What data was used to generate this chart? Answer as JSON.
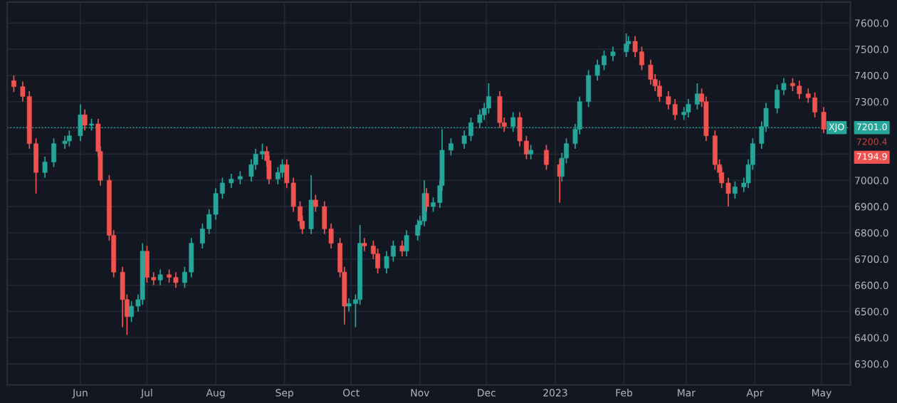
{
  "chart_data": {
    "type": "candlestick",
    "x": [
      "2022-05-02",
      "2022-05-06",
      "2022-05-09",
      "2022-05-12",
      "2022-05-16",
      "2022-05-20",
      "2022-05-25",
      "2022-05-27",
      "2022-06-01",
      "2022-06-03",
      "2022-06-06",
      "2022-06-09",
      "2022-06-10",
      "2022-06-14",
      "2022-06-16",
      "2022-06-20",
      "2022-06-22",
      "2022-06-24",
      "2022-06-27",
      "2022-06-29",
      "2022-07-01",
      "2022-07-04",
      "2022-07-07",
      "2022-07-11",
      "2022-07-14",
      "2022-07-18",
      "2022-07-21",
      "2022-07-26",
      "2022-07-29",
      "2022-08-01",
      "2022-08-04",
      "2022-08-08",
      "2022-08-12",
      "2022-08-17",
      "2022-08-19",
      "2022-08-22",
      "2022-08-24",
      "2022-08-25",
      "2022-08-29",
      "2022-08-31",
      "2022-09-02",
      "2022-09-05",
      "2022-09-08",
      "2022-09-09",
      "2022-09-13",
      "2022-09-15",
      "2022-09-19",
      "2022-09-22",
      "2022-09-26",
      "2022-09-28",
      "2022-09-30",
      "2022-10-03",
      "2022-10-05",
      "2022-10-07",
      "2022-10-11",
      "2022-10-13",
      "2022-10-17",
      "2022-10-20",
      "2022-10-24",
      "2022-10-26",
      "2022-10-31",
      "2022-11-01",
      "2022-11-03",
      "2022-11-04",
      "2022-11-07",
      "2022-11-10",
      "2022-11-11",
      "2022-11-15",
      "2022-11-21",
      "2022-11-24",
      "2022-11-28",
      "2022-11-30",
      "2022-12-02",
      "2022-12-07",
      "2022-12-09",
      "2022-12-13",
      "2022-12-16",
      "2022-12-19",
      "2022-12-21",
      "2022-12-28",
      "2023-01-03",
      "2023-01-04",
      "2023-01-06",
      "2023-01-10",
      "2023-01-12",
      "2023-01-16",
      "2023-01-20",
      "2023-01-23",
      "2023-01-27",
      "2023-02-02",
      "2023-02-03",
      "2023-02-06",
      "2023-02-09",
      "2023-02-13",
      "2023-02-15",
      "2023-02-17",
      "2023-02-21",
      "2023-02-24",
      "2023-02-28",
      "2023-03-02",
      "2023-03-06",
      "2023-03-08",
      "2023-03-10",
      "2023-03-14",
      "2023-03-16",
      "2023-03-17",
      "2023-03-20",
      "2023-03-23",
      "2023-03-27",
      "2023-03-29",
      "2023-03-31",
      "2023-04-04",
      "2023-04-06",
      "2023-04-11",
      "2023-04-14",
      "2023-04-18",
      "2023-04-21",
      "2023-04-25",
      "2023-04-28",
      "2023-05-02"
    ],
    "ohlc": [
      [
        7380,
        7400,
        7337,
        7357
      ],
      [
        7357,
        7377,
        7300,
        7320
      ],
      [
        7320,
        7340,
        7120,
        7140
      ],
      [
        7140,
        7160,
        6950,
        7030
      ],
      [
        7030,
        7090,
        7010,
        7070
      ],
      [
        7070,
        7160,
        7050,
        7140
      ],
      [
        7140,
        7170,
        7120,
        7150
      ],
      [
        7150,
        7190,
        7130,
        7170
      ],
      [
        7170,
        7290,
        7150,
        7250
      ],
      [
        7250,
        7270,
        7190,
        7210
      ],
      [
        7210,
        7235,
        7190,
        7215
      ],
      [
        7215,
        7235,
        7090,
        7110
      ],
      [
        7110,
        7130,
        6980,
        7000
      ],
      [
        7000,
        7020,
        6770,
        6790
      ],
      [
        6790,
        6810,
        6630,
        6650
      ],
      [
        6650,
        6670,
        6440,
        6545
      ],
      [
        6545,
        6565,
        6410,
        6480
      ],
      [
        6480,
        6540,
        6460,
        6520
      ],
      [
        6520,
        6565,
        6500,
        6545
      ],
      [
        6545,
        6760,
        6525,
        6730
      ],
      [
        6730,
        6750,
        6610,
        6630
      ],
      [
        6630,
        6650,
        6600,
        6620
      ],
      [
        6620,
        6660,
        6600,
        6640
      ],
      [
        6640,
        6660,
        6610,
        6630
      ],
      [
        6630,
        6650,
        6590,
        6610
      ],
      [
        6610,
        6670,
        6590,
        6650
      ],
      [
        6650,
        6780,
        6630,
        6760
      ],
      [
        6760,
        6835,
        6740,
        6815
      ],
      [
        6815,
        6890,
        6795,
        6870
      ],
      [
        6870,
        6970,
        6850,
        6950
      ],
      [
        6950,
        7010,
        6930,
        6990
      ],
      [
        6990,
        7025,
        6970,
        7005
      ],
      [
        7005,
        7035,
        6985,
        7015
      ],
      [
        7015,
        7080,
        6995,
        7060
      ],
      [
        7060,
        7120,
        7040,
        7100
      ],
      [
        7100,
        7140,
        7080,
        7110
      ],
      [
        7110,
        7130,
        7055,
        7075
      ],
      [
        7075,
        7095,
        6985,
        7005
      ],
      [
        7005,
        7050,
        6985,
        7030
      ],
      [
        7030,
        7080,
        7010,
        7060
      ],
      [
        7060,
        7080,
        6970,
        6990
      ],
      [
        6990,
        7010,
        6880,
        6900
      ],
      [
        6900,
        6920,
        6825,
        6845
      ],
      [
        6845,
        6865,
        6795,
        6815
      ],
      [
        6815,
        7020,
        6795,
        6925
      ],
      [
        6925,
        6945,
        6880,
        6900
      ],
      [
        6900,
        6920,
        6795,
        6815
      ],
      [
        6815,
        6835,
        6740,
        6760
      ],
      [
        6760,
        6780,
        6630,
        6650
      ],
      [
        6650,
        6670,
        6450,
        6520
      ],
      [
        6520,
        6550,
        6500,
        6530
      ],
      [
        6530,
        6565,
        6440,
        6545
      ],
      [
        6545,
        6830,
        6525,
        6760
      ],
      [
        6760,
        6780,
        6730,
        6750
      ],
      [
        6750,
        6770,
        6700,
        6720
      ],
      [
        6720,
        6740,
        6645,
        6665
      ],
      [
        6665,
        6730,
        6645,
        6710
      ],
      [
        6710,
        6770,
        6690,
        6750
      ],
      [
        6750,
        6770,
        6710,
        6730
      ],
      [
        6730,
        6810,
        6710,
        6790
      ],
      [
        6790,
        6850,
        6770,
        6830
      ],
      [
        6830,
        6865,
        6810,
        6845
      ],
      [
        6845,
        7000,
        6825,
        6950
      ],
      [
        6950,
        6970,
        6880,
        6900
      ],
      [
        6900,
        6935,
        6880,
        6915
      ],
      [
        6915,
        7000,
        6895,
        6980
      ],
      [
        6980,
        7195,
        6960,
        7115
      ],
      [
        7115,
        7160,
        7095,
        7140
      ],
      [
        7140,
        7190,
        7120,
        7170
      ],
      [
        7170,
        7240,
        7150,
        7220
      ],
      [
        7220,
        7270,
        7200,
        7250
      ],
      [
        7250,
        7295,
        7230,
        7275
      ],
      [
        7275,
        7370,
        7255,
        7320
      ],
      [
        7320,
        7340,
        7200,
        7220
      ],
      [
        7220,
        7240,
        7185,
        7205
      ],
      [
        7205,
        7260,
        7185,
        7240
      ],
      [
        7240,
        7260,
        7130,
        7150
      ],
      [
        7150,
        7170,
        7080,
        7100
      ],
      [
        7100,
        7135,
        7080,
        7115
      ],
      [
        7115,
        7135,
        7040,
        7060
      ],
      [
        7060,
        7080,
        6915,
        7015
      ],
      [
        7015,
        7105,
        6995,
        7085
      ],
      [
        7085,
        7160,
        7065,
        7140
      ],
      [
        7140,
        7215,
        7120,
        7195
      ],
      [
        7195,
        7320,
        7175,
        7300
      ],
      [
        7300,
        7420,
        7280,
        7400
      ],
      [
        7400,
        7460,
        7380,
        7440
      ],
      [
        7440,
        7495,
        7420,
        7475
      ],
      [
        7475,
        7510,
        7455,
        7490
      ],
      [
        7490,
        7560,
        7470,
        7520
      ],
      [
        7520,
        7550,
        7500,
        7530
      ],
      [
        7530,
        7550,
        7470,
        7490
      ],
      [
        7490,
        7510,
        7420,
        7440
      ],
      [
        7440,
        7460,
        7365,
        7385
      ],
      [
        7385,
        7405,
        7340,
        7360
      ],
      [
        7360,
        7380,
        7300,
        7320
      ],
      [
        7320,
        7340,
        7270,
        7290
      ],
      [
        7290,
        7310,
        7230,
        7250
      ],
      [
        7250,
        7280,
        7230,
        7260
      ],
      [
        7260,
        7310,
        7240,
        7290
      ],
      [
        7290,
        7370,
        7270,
        7330
      ],
      [
        7330,
        7350,
        7280,
        7300
      ],
      [
        7300,
        7320,
        7150,
        7170
      ],
      [
        7170,
        7190,
        7040,
        7060
      ],
      [
        7060,
        7080,
        7010,
        7030
      ],
      [
        7030,
        7050,
        6970,
        6990
      ],
      [
        6990,
        7010,
        6900,
        6950
      ],
      [
        6950,
        6995,
        6930,
        6975
      ],
      [
        6975,
        7010,
        6955,
        6990
      ],
      [
        6990,
        7080,
        6970,
        7060
      ],
      [
        7060,
        7160,
        7040,
        7140
      ],
      [
        7140,
        7225,
        7120,
        7205
      ],
      [
        7205,
        7295,
        7185,
        7275
      ],
      [
        7275,
        7365,
        7255,
        7345
      ],
      [
        7345,
        7390,
        7325,
        7370
      ],
      [
        7370,
        7390,
        7340,
        7360
      ],
      [
        7360,
        7380,
        7310,
        7330
      ],
      [
        7330,
        7350,
        7295,
        7315
      ],
      [
        7315,
        7335,
        7240,
        7260
      ],
      [
        7260,
        7280,
        7180,
        7194.9
      ]
    ],
    "colors": [
      "#ef5350",
      "#ef5350",
      "#ef5350",
      "#ef5350",
      "#26a69a",
      "#26a69a",
      "#26a69a",
      "#26a69a",
      "#26a69a",
      "#ef5350",
      "#26a69a",
      "#ef5350",
      "#ef5350",
      "#ef5350",
      "#ef5350",
      "#ef5350",
      "#ef5350",
      "#26a69a",
      "#26a69a",
      "#26a69a",
      "#ef5350",
      "#ef5350",
      "#26a69a",
      "#ef5350",
      "#ef5350",
      "#26a69a",
      "#26a69a",
      "#26a69a",
      "#26a69a",
      "#26a69a",
      "#26a69a",
      "#26a69a",
      "#26a69a",
      "#26a69a",
      "#26a69a",
      "#26a69a",
      "#ef5350",
      "#ef5350",
      "#26a69a",
      "#26a69a",
      "#ef5350",
      "#ef5350",
      "#ef5350",
      "#ef5350",
      "#26a69a",
      "#ef5350",
      "#ef5350",
      "#ef5350",
      "#ef5350",
      "#ef5350",
      "#26a69a",
      "#26a69a",
      "#26a69a",
      "#ef5350",
      "#ef5350",
      "#ef5350",
      "#26a69a",
      "#26a69a",
      "#ef5350",
      "#26a69a",
      "#26a69a",
      "#26a69a",
      "#26a69a",
      "#ef5350",
      "#26a69a",
      "#26a69a",
      "#26a69a",
      "#26a69a",
      "#26a69a",
      "#26a69a",
      "#26a69a",
      "#26a69a",
      "#26a69a",
      "#ef5350",
      "#ef5350",
      "#26a69a",
      "#ef5350",
      "#ef5350",
      "#26a69a",
      "#ef5350",
      "#ef5350",
      "#26a69a",
      "#26a69a",
      "#26a69a",
      "#26a69a",
      "#26a69a",
      "#26a69a",
      "#26a69a",
      "#26a69a",
      "#26a69a",
      "#26a69a",
      "#ef5350",
      "#ef5350",
      "#ef5350",
      "#ef5350",
      "#ef5350",
      "#ef5350",
      "#ef5350",
      "#26a69a",
      "#26a69a",
      "#26a69a",
      "#ef5350",
      "#ef5350",
      "#ef5350",
      "#ef5350",
      "#ef5350",
      "#ef5350",
      "#26a69a",
      "#26a69a",
      "#26a69a",
      "#26a69a",
      "#26a69a",
      "#26a69a",
      "#26a69a",
      "#26a69a",
      "#ef5350",
      "#ef5350",
      "#ef5350",
      "#ef5350",
      "#ef5350"
    ],
    "xlim": [
      "2022-04-29",
      "2023-05-14"
    ],
    "xticks": [
      {
        "value": "2022-06-01",
        "label": "Jun"
      },
      {
        "value": "2022-07-01",
        "label": "Jul"
      },
      {
        "value": "2022-08-01",
        "label": "Aug"
      },
      {
        "value": "2022-09-01",
        "label": "Sep"
      },
      {
        "value": "2022-10-01",
        "label": "Oct"
      },
      {
        "value": "2022-11-01",
        "label": "Nov"
      },
      {
        "value": "2022-12-01",
        "label": "Dec"
      },
      {
        "value": "2023-01-01",
        "label": "2023"
      },
      {
        "value": "2023-02-01",
        "label": "Feb"
      },
      {
        "value": "2023-03-01",
        "label": "Mar"
      },
      {
        "value": "2023-04-01",
        "label": "Apr"
      },
      {
        "value": "2023-05-01",
        "label": "May"
      }
    ],
    "ylim": [
      6220,
      7680
    ],
    "yticks": [
      {
        "value": 6300,
        "label": "6300.0"
      },
      {
        "value": 6400,
        "label": "6400.0"
      },
      {
        "value": 6500,
        "label": "6500.0"
      },
      {
        "value": 6600,
        "label": "6600.0"
      },
      {
        "value": 6700,
        "label": "6700.0"
      },
      {
        "value": 6800,
        "label": "6800.0"
      },
      {
        "value": 6900,
        "label": "6900.0"
      },
      {
        "value": 7000,
        "label": "7000.0"
      },
      {
        "value": 7100,
        "label": null
      },
      {
        "value": 7200,
        "label": null
      },
      {
        "value": 7300,
        "label": "7300.0"
      },
      {
        "value": 7400,
        "label": "7400.0"
      },
      {
        "value": 7500,
        "label": "7500.0"
      },
      {
        "value": 7600,
        "label": "7600.0"
      }
    ],
    "grid": true,
    "ref_lines": [
      {
        "axis": "y",
        "value": 7201.0,
        "label": "XJO",
        "color": "#26a69a",
        "line_style": "dotted"
      }
    ],
    "annotations": [
      {
        "text": "7201.0",
        "y": 7201.0
      },
      "7200.4",
      "7194.9"
    ]
  }
}
